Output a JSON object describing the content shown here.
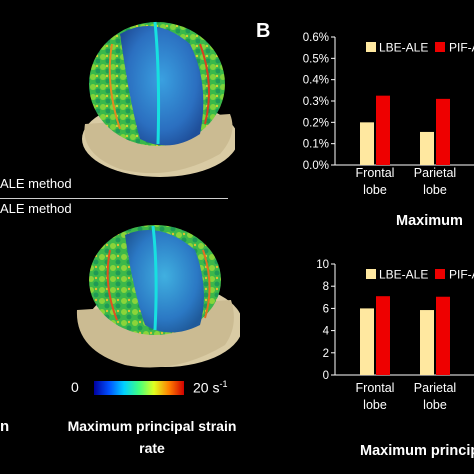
{
  "panel_label": "B",
  "left": {
    "method_top": "ALE method",
    "method_bottom": "ALE method",
    "cut_label": "n",
    "colorbar_min": "0",
    "colorbar_max": "20 s",
    "colorbar_max_exp": "-1",
    "caption_line1": "Maximum principal strain",
    "caption_line2": "rate"
  },
  "colors": {
    "lbe": "#FFE8A0",
    "pif": "#EE0000",
    "axis": "#FFFFFF"
  },
  "chart_data": [
    {
      "type": "bar",
      "categories": [
        "Frontal lobe",
        "Parietal lobe"
      ],
      "category_lines": [
        [
          "Frontal",
          "lobe"
        ],
        [
          "Parietal",
          "lobe"
        ]
      ],
      "series": [
        {
          "name": "LBE-ALE",
          "values": [
            0.2,
            0.155
          ]
        },
        {
          "name": "PIF-ALE",
          "values": [
            0.325,
            0.31
          ]
        }
      ],
      "legend_visible": [
        "LBE-ALE",
        "PIF-A"
      ],
      "yticks": [
        "0.0%",
        "0.1%",
        "0.2%",
        "0.3%",
        "0.4%",
        "0.5%",
        "0.6%"
      ],
      "ylim": [
        0,
        0.6
      ],
      "caption": "Maximum",
      "grid": false,
      "legend": "top"
    },
    {
      "type": "bar",
      "categories": [
        "Frontal lobe",
        "Parietal lobe"
      ],
      "category_lines": [
        [
          "Frontal",
          "lobe"
        ],
        [
          "Parietal",
          "lobe"
        ]
      ],
      "series": [
        {
          "name": "LBE-ALE",
          "values": [
            6.0,
            5.85
          ]
        },
        {
          "name": "PIF-ALE",
          "values": [
            7.1,
            7.05
          ]
        }
      ],
      "legend_visible": [
        "LBE-ALE",
        "PIF-A"
      ],
      "yticks": [
        "0",
        "2",
        "4",
        "6",
        "8",
        "10"
      ],
      "ylim": [
        0,
        10
      ],
      "caption": "Maximum principal",
      "grid": false,
      "legend": "top"
    }
  ]
}
